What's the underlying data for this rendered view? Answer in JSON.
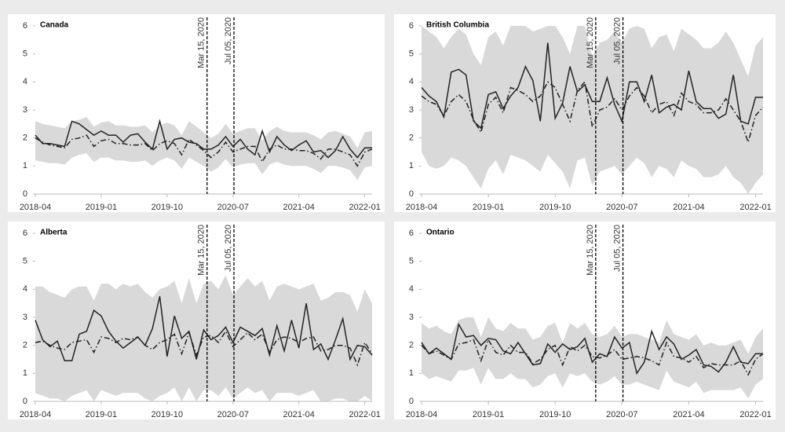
{
  "chart_data": [
    {
      "type": "line",
      "title": "Canada",
      "x": [
        "2018-04",
        "2018-05",
        "2018-06",
        "2018-07",
        "2018-08",
        "2018-09",
        "2018-10",
        "2018-11",
        "2018-12",
        "2019-01",
        "2019-02",
        "2019-03",
        "2019-04",
        "2019-05",
        "2019-06",
        "2019-07",
        "2019-08",
        "2019-09",
        "2019-10",
        "2019-11",
        "2019-12",
        "2020-01",
        "2020-02",
        "2020-03",
        "2020-04",
        "2020-05",
        "2020-06",
        "2020-07",
        "2020-08",
        "2020-09",
        "2020-10",
        "2020-11",
        "2020-12",
        "2021-01",
        "2021-02",
        "2021-03",
        "2021-04",
        "2021-05",
        "2021-06",
        "2021-07",
        "2021-08",
        "2021-09",
        "2021-10",
        "2021-11",
        "2021-12",
        "2022-01",
        "2022-02"
      ],
      "xlim": [
        "2018-04",
        "2022-02"
      ],
      "xticks": [
        "2018-04",
        "2019-01",
        "2019-10",
        "2020-07",
        "2021-04",
        "2022-01"
      ],
      "ylim": [
        0,
        6
      ],
      "yticks": [
        0,
        1,
        2,
        3,
        4,
        5,
        6
      ],
      "band": {
        "color": "#d9d9d9",
        "lower": [
          1.2,
          1.15,
          1.1,
          1.1,
          1.05,
          1.3,
          1.4,
          1.45,
          1.15,
          1.3,
          1.3,
          1.2,
          1.2,
          1.15,
          1.15,
          1.2,
          1.0,
          1.2,
          1.3,
          1.2,
          0.9,
          1.3,
          1.15,
          1.0,
          0.8,
          0.95,
          1.25,
          0.95,
          1.05,
          1.1,
          1.1,
          0.7,
          1.05,
          1.15,
          1.05,
          1.0,
          1.0,
          1.0,
          0.9,
          0.75,
          1.0,
          1.0,
          0.95,
          0.85,
          0.5,
          0.95,
          1.0
        ],
        "upper": [
          2.6,
          2.5,
          2.45,
          2.4,
          2.35,
          2.6,
          2.65,
          2.75,
          2.4,
          2.55,
          2.6,
          2.45,
          2.45,
          2.4,
          2.4,
          2.45,
          2.2,
          2.45,
          2.55,
          2.45,
          2.1,
          2.6,
          2.4,
          2.2,
          2.0,
          2.15,
          2.5,
          2.15,
          2.25,
          2.35,
          2.35,
          1.9,
          2.25,
          2.4,
          2.25,
          2.2,
          2.2,
          2.2,
          2.1,
          1.95,
          2.2,
          2.25,
          2.15,
          2.05,
          1.65,
          2.2,
          2.25
        ]
      },
      "series": [
        {
          "color": "#222222",
          "style": "solid",
          "values": [
            2.1,
            1.8,
            1.8,
            1.75,
            1.7,
            2.6,
            2.5,
            2.3,
            2.1,
            2.25,
            2.1,
            2.1,
            1.85,
            2.1,
            2.15,
            1.85,
            1.6,
            2.6,
            1.6,
            1.95,
            2.0,
            1.85,
            1.8,
            1.6,
            1.6,
            1.75,
            2.05,
            1.7,
            1.95,
            1.6,
            1.4,
            2.25,
            1.5,
            2.05,
            1.75,
            1.55,
            1.75,
            1.9,
            1.5,
            1.55,
            1.3,
            1.55,
            2.05,
            1.6,
            1.3,
            1.65,
            1.65
          ]
        },
        {
          "color": "#222222",
          "style": "dashdot",
          "values": [
            2.0,
            1.85,
            1.75,
            1.7,
            1.65,
            1.95,
            2.0,
            2.1,
            1.7,
            1.9,
            1.95,
            1.8,
            1.8,
            1.75,
            1.75,
            1.8,
            1.55,
            1.8,
            1.9,
            1.8,
            1.4,
            1.95,
            1.75,
            1.55,
            1.3,
            1.5,
            1.85,
            1.5,
            1.6,
            1.7,
            1.7,
            1.15,
            1.6,
            1.75,
            1.6,
            1.6,
            1.55,
            1.55,
            1.45,
            1.25,
            1.6,
            1.6,
            1.5,
            1.4,
            1.0,
            1.5,
            1.6
          ]
        }
      ],
      "annotations": [
        {
          "label": "Mar 15, 2020",
          "x": "2020-03-15"
        },
        {
          "label": "Jul 05, 2020",
          "x": "2020-07-05"
        }
      ]
    },
    {
      "type": "line",
      "title": "British Columbia",
      "x": [
        "2018-04",
        "2018-05",
        "2018-06",
        "2018-07",
        "2018-08",
        "2018-09",
        "2018-10",
        "2018-11",
        "2018-12",
        "2019-01",
        "2019-02",
        "2019-03",
        "2019-04",
        "2019-05",
        "2019-06",
        "2019-07",
        "2019-08",
        "2019-09",
        "2019-10",
        "2019-11",
        "2019-12",
        "2020-01",
        "2020-02",
        "2020-03",
        "2020-04",
        "2020-05",
        "2020-06",
        "2020-07",
        "2020-08",
        "2020-09",
        "2020-10",
        "2020-11",
        "2020-12",
        "2021-01",
        "2021-02",
        "2021-03",
        "2021-04",
        "2021-05",
        "2021-06",
        "2021-07",
        "2021-08",
        "2021-09",
        "2021-10",
        "2021-11",
        "2021-12",
        "2022-01",
        "2022-02"
      ],
      "xlim": [
        "2018-04",
        "2022-02"
      ],
      "xticks": [
        "2018-04",
        "2019-01",
        "2019-10",
        "2020-07",
        "2021-04",
        "2022-01"
      ],
      "ylim": [
        0,
        6
      ],
      "yticks": [
        0,
        1,
        2,
        3,
        4,
        5,
        6
      ],
      "band": {
        "color": "#d9d9d9",
        "lower": [
          1.5,
          1.0,
          0.9,
          1.0,
          1.3,
          1.2,
          1.0,
          0.6,
          0.2,
          0.9,
          1.2,
          0.7,
          1.4,
          1.3,
          1.2,
          1.0,
          0.8,
          1.4,
          1.1,
          0.8,
          0.2,
          1.2,
          1.3,
          0.3,
          0.8,
          0.9,
          1.0,
          0.7,
          1.0,
          1.3,
          1.1,
          0.6,
          1.0,
          0.9,
          0.6,
          1.2,
          1.0,
          0.9,
          0.6,
          0.6,
          0.7,
          1.0,
          0.6,
          0.4,
          0.0,
          0.4,
          0.7
        ],
        "upper": [
          6,
          5.8,
          5.6,
          5.2,
          5.6,
          5.9,
          5.7,
          5.0,
          4.6,
          5.6,
          5.8,
          5.3,
          6,
          6,
          6,
          5.8,
          5.9,
          6,
          6,
          5.6,
          5.0,
          6,
          6,
          4.9,
          5.4,
          5.5,
          5.8,
          5.4,
          5.9,
          6,
          5.9,
          5.2,
          5.6,
          5.7,
          5.1,
          5.9,
          5.7,
          5.5,
          5.2,
          5.2,
          5.4,
          5.8,
          5.4,
          4.8,
          4.2,
          5.3,
          5.6
        ]
      },
      "series": [
        {
          "color": "#222222",
          "style": "solid",
          "values": [
            3.8,
            3.5,
            3.3,
            2.75,
            4.35,
            4.45,
            4.25,
            2.6,
            2.35,
            3.55,
            3.65,
            3.05,
            3.5,
            3.8,
            4.55,
            4.05,
            2.6,
            5.4,
            2.7,
            3.25,
            4.55,
            3.65,
            3.9,
            3.3,
            3.3,
            4.15,
            3.2,
            2.6,
            4.0,
            4.0,
            3.3,
            4.25,
            2.9,
            3.1,
            3.2,
            3.0,
            4.4,
            3.3,
            3.05,
            3.05,
            2.7,
            2.85,
            4.25,
            2.6,
            2.5,
            3.45,
            3.45
          ]
        },
        {
          "color": "#222222",
          "style": "dashdot",
          "values": [
            3.5,
            3.3,
            3.2,
            2.8,
            3.3,
            3.55,
            3.3,
            2.65,
            2.2,
            3.2,
            3.45,
            2.9,
            3.8,
            3.7,
            3.55,
            3.3,
            3.5,
            4.0,
            3.8,
            3.2,
            2.6,
            3.7,
            4.0,
            2.4,
            3.0,
            3.1,
            3.4,
            3.0,
            3.5,
            3.8,
            3.5,
            2.9,
            3.2,
            3.3,
            2.8,
            3.6,
            3.3,
            3.2,
            2.9,
            2.9,
            3.0,
            3.4,
            3.0,
            2.6,
            1.85,
            2.8,
            3.1
          ]
        }
      ],
      "annotations": [
        {
          "label": "Mar 15, 2020",
          "x": "2020-03-15"
        },
        {
          "label": "Jul 05, 2020",
          "x": "2020-07-05"
        }
      ]
    },
    {
      "type": "line",
      "title": "Alberta",
      "x": [
        "2018-04",
        "2018-05",
        "2018-06",
        "2018-07",
        "2018-08",
        "2018-09",
        "2018-10",
        "2018-11",
        "2018-12",
        "2019-01",
        "2019-02",
        "2019-03",
        "2019-04",
        "2019-05",
        "2019-06",
        "2019-07",
        "2019-08",
        "2019-09",
        "2019-10",
        "2019-11",
        "2019-12",
        "2020-01",
        "2020-02",
        "2020-03",
        "2020-04",
        "2020-05",
        "2020-06",
        "2020-07",
        "2020-08",
        "2020-09",
        "2020-10",
        "2020-11",
        "2020-12",
        "2021-01",
        "2021-02",
        "2021-03",
        "2021-04",
        "2021-05",
        "2021-06",
        "2021-07",
        "2021-08",
        "2021-09",
        "2021-10",
        "2021-11",
        "2021-12",
        "2022-01",
        "2022-02"
      ],
      "xlim": [
        "2018-04",
        "2022-02"
      ],
      "xticks": [
        "2018-04",
        "2019-01",
        "2019-10",
        "2020-07",
        "2021-04",
        "2022-01"
      ],
      "ylim": [
        0,
        6
      ],
      "yticks": [
        0,
        1,
        2,
        3,
        4,
        5,
        6
      ],
      "band": {
        "color": "#d9d9d9",
        "lower": [
          0.3,
          0.2,
          0.1,
          0.1,
          0.0,
          0.2,
          0.3,
          0.4,
          0.0,
          0.4,
          0.3,
          0.2,
          0.3,
          0.3,
          0.3,
          0.1,
          0.0,
          0.2,
          0.3,
          0.5,
          0.0,
          0.5,
          0.0,
          0.4,
          0.4,
          0.2,
          0.5,
          0.1,
          0.3,
          0.5,
          0.3,
          0.4,
          0.0,
          0.3,
          0.3,
          0.3,
          0.2,
          0.3,
          0.4,
          0.0,
          0.0,
          0.1,
          0.1,
          0.0,
          0.0,
          0.2,
          0.0
        ],
        "upper": [
          4.1,
          4.1,
          3.9,
          3.8,
          3.7,
          4.0,
          4.1,
          4.1,
          3.6,
          4.2,
          4.2,
          4.0,
          4.2,
          4.1,
          4.2,
          3.9,
          3.7,
          4.0,
          4.1,
          4.3,
          3.5,
          4.4,
          3.5,
          4.2,
          4.3,
          4.0,
          4.5,
          3.8,
          4.1,
          4.4,
          4.1,
          4.3,
          3.6,
          4.1,
          4.2,
          4.1,
          4.0,
          4.1,
          4.2,
          3.6,
          3.7,
          3.9,
          3.9,
          3.8,
          3.2,
          4.0,
          3.5
        ]
      },
      "series": [
        {
          "color": "#222222",
          "style": "solid",
          "values": [
            2.9,
            2.2,
            1.95,
            2.15,
            1.45,
            1.45,
            2.4,
            2.5,
            3.25,
            3.05,
            2.5,
            2.15,
            1.9,
            2.1,
            2.3,
            2.0,
            2.6,
            3.75,
            1.6,
            3.05,
            2.25,
            2.5,
            1.5,
            2.55,
            2.2,
            2.35,
            2.65,
            2.1,
            2.65,
            2.5,
            2.35,
            2.6,
            1.65,
            2.7,
            1.8,
            2.9,
            1.9,
            3.5,
            1.85,
            2.05,
            1.5,
            2.2,
            2.95,
            1.5,
            2.0,
            1.95,
            1.65
          ]
        },
        {
          "color": "#222222",
          "style": "dashdot",
          "values": [
            2.1,
            2.15,
            2.0,
            1.9,
            1.85,
            2.1,
            2.15,
            2.2,
            1.75,
            2.3,
            2.25,
            2.1,
            2.25,
            2.2,
            2.3,
            2.0,
            1.85,
            2.1,
            2.2,
            2.4,
            1.7,
            2.45,
            1.65,
            2.3,
            2.35,
            2.1,
            2.5,
            1.95,
            2.2,
            2.45,
            2.2,
            2.4,
            1.75,
            2.2,
            2.3,
            2.25,
            2.1,
            2.25,
            2.3,
            1.8,
            1.85,
            2.0,
            2.0,
            1.9,
            1.3,
            2.1,
            1.7
          ]
        }
      ],
      "annotations": [
        {
          "label": "Mar 15, 2020",
          "x": "2020-03-15"
        },
        {
          "label": "Jul 05, 2020",
          "x": "2020-07-05"
        }
      ]
    },
    {
      "type": "line",
      "title": "Ontario",
      "x": [
        "2018-04",
        "2018-05",
        "2018-06",
        "2018-07",
        "2018-08",
        "2018-09",
        "2018-10",
        "2018-11",
        "2018-12",
        "2019-01",
        "2019-02",
        "2019-03",
        "2019-04",
        "2019-05",
        "2019-06",
        "2019-07",
        "2019-08",
        "2019-09",
        "2019-10",
        "2019-11",
        "2019-12",
        "2020-01",
        "2020-02",
        "2020-03",
        "2020-04",
        "2020-05",
        "2020-06",
        "2020-07",
        "2020-08",
        "2020-09",
        "2020-10",
        "2020-11",
        "2020-12",
        "2021-01",
        "2021-02",
        "2021-03",
        "2021-04",
        "2021-05",
        "2021-06",
        "2021-07",
        "2021-08",
        "2021-09",
        "2021-10",
        "2021-11",
        "2021-12",
        "2022-01",
        "2022-02"
      ],
      "xlim": [
        "2018-04",
        "2022-02"
      ],
      "xticks": [
        "2018-04",
        "2019-01",
        "2019-10",
        "2020-07",
        "2021-04",
        "2022-01"
      ],
      "ylim": [
        0,
        6
      ],
      "yticks": [
        0,
        1,
        2,
        3,
        4,
        5,
        6
      ],
      "band": {
        "color": "#d9d9d9",
        "lower": [
          1.0,
          0.8,
          0.9,
          0.8,
          0.7,
          1.1,
          1.1,
          1.2,
          0.6,
          1.2,
          0.8,
          0.8,
          1.0,
          0.8,
          0.8,
          0.5,
          0.6,
          0.9,
          1.0,
          0.5,
          1.0,
          0.9,
          1.0,
          0.7,
          0.6,
          0.7,
          0.9,
          0.6,
          0.6,
          0.7,
          0.6,
          0.5,
          0.4,
          1.1,
          0.7,
          0.6,
          0.5,
          0.7,
          0.3,
          0.4,
          0.4,
          0.4,
          0.4,
          0.5,
          0.1,
          0.6,
          0.8
        ],
        "upper": [
          2.8,
          2.6,
          2.7,
          2.5,
          2.4,
          2.9,
          3.0,
          3.0,
          2.3,
          3.0,
          2.6,
          2.5,
          2.8,
          2.6,
          2.6,
          2.2,
          2.3,
          2.7,
          2.8,
          2.1,
          2.8,
          2.6,
          2.8,
          2.4,
          2.3,
          2.4,
          2.7,
          2.3,
          2.4,
          2.4,
          2.3,
          2.2,
          2.1,
          2.9,
          2.4,
          2.3,
          2.2,
          2.4,
          2.0,
          2.1,
          2.0,
          2.0,
          2.1,
          2.2,
          1.7,
          2.3,
          2.6
        ]
      },
      "series": [
        {
          "color": "#222222",
          "style": "solid",
          "values": [
            2.1,
            1.7,
            1.9,
            1.7,
            1.5,
            2.75,
            2.3,
            2.35,
            2.0,
            2.25,
            2.2,
            1.8,
            1.7,
            2.1,
            1.7,
            1.3,
            1.35,
            2.05,
            1.75,
            2.05,
            1.85,
            1.95,
            2.25,
            1.4,
            1.7,
            1.6,
            2.3,
            1.9,
            2.1,
            1.0,
            1.4,
            2.5,
            1.85,
            2.3,
            2.05,
            1.5,
            1.65,
            1.85,
            1.3,
            1.25,
            1.05,
            1.4,
            1.95,
            1.4,
            1.35,
            1.7,
            1.7
          ]
        },
        {
          "color": "#222222",
          "style": "dashdot",
          "values": [
            2.0,
            1.7,
            1.8,
            1.65,
            1.5,
            2.05,
            2.1,
            2.2,
            1.45,
            2.2,
            1.75,
            1.65,
            2.0,
            1.75,
            1.75,
            1.35,
            1.5,
            1.85,
            2.0,
            1.3,
            1.95,
            1.8,
            2.0,
            1.6,
            1.55,
            1.65,
            1.85,
            1.5,
            1.55,
            1.6,
            1.55,
            1.45,
            1.3,
            2.1,
            1.6,
            1.55,
            1.4,
            1.6,
            1.2,
            1.35,
            1.3,
            1.3,
            1.3,
            1.45,
            0.95,
            1.5,
            1.7
          ]
        }
      ],
      "annotations": [
        {
          "label": "Mar 15, 2020",
          "x": "2020-03-15"
        },
        {
          "label": "Jul 05, 2020",
          "x": "2020-07-05"
        }
      ]
    }
  ]
}
